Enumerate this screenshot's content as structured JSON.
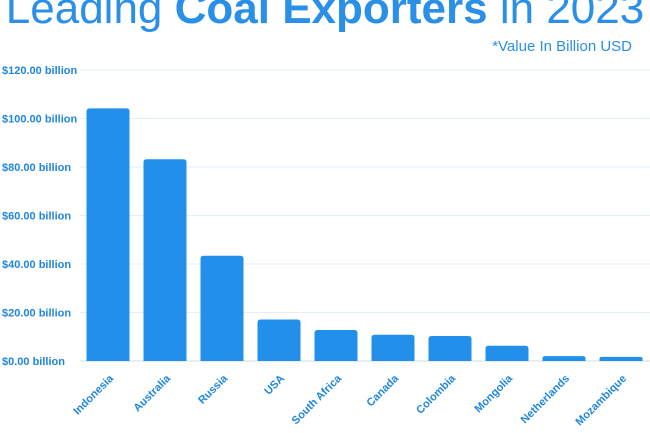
{
  "colors": {
    "accent": "#2a8fe6",
    "bar": "#2290ea"
  },
  "chart_data": {
    "type": "bar",
    "title_light_1": "Leading",
    "title_bold": "Coal Exporters",
    "title_light_2": "in 2023",
    "note": "*Value In Billion USD",
    "categories": [
      "Indonesia",
      "Australia",
      "Russia",
      "USA",
      "South Africa",
      "Canada",
      "Colombia",
      "Mongolia",
      "Netherlands",
      "Mozambique"
    ],
    "values": [
      104.2,
      83.2,
      43.4,
      17.1,
      12.8,
      10.8,
      10.3,
      6.3,
      2.0,
      1.7
    ],
    "ylim": [
      0,
      120
    ],
    "yticks": [
      0,
      20,
      40,
      60,
      80,
      100,
      120
    ],
    "ytick_labels": [
      "$0.00 billion",
      "$20.00 billion",
      "$40.00 billion",
      "$60.00 billion",
      "$80.00 billion",
      "$100.00 billion",
      "$120.00 billion"
    ],
    "xlabel": "",
    "ylabel": "",
    "grid": true,
    "legend": "none"
  }
}
